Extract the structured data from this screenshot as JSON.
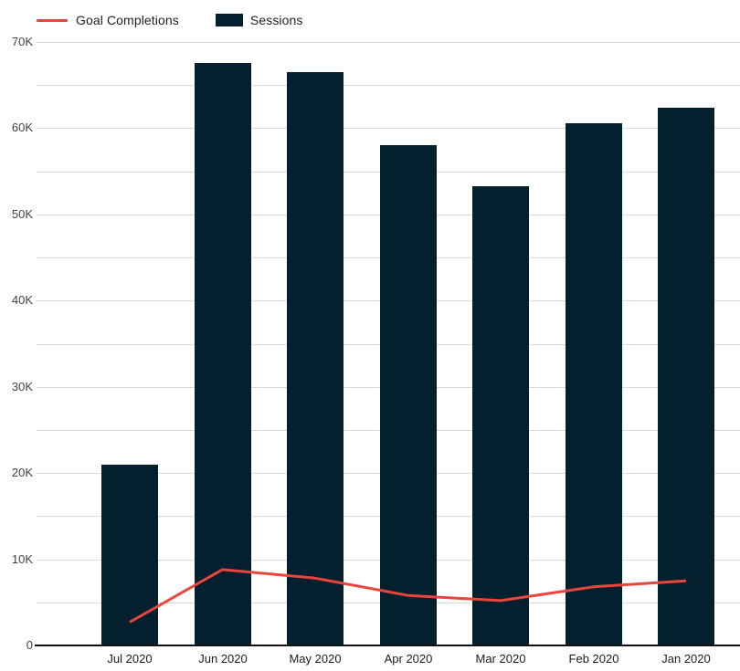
{
  "legend": {
    "items": [
      {
        "label": "Goal Completions",
        "swatch": "line-swatch",
        "color": "#e8453c"
      },
      {
        "label": "Sessions",
        "swatch": "rect-swatch",
        "color": "#04202f"
      }
    ]
  },
  "chart_data": {
    "type": "bar",
    "title": "",
    "xlabel": "",
    "ylabel": "",
    "categories": [
      "Jul 2020",
      "Jun 2020",
      "May 2020",
      "Apr 2020",
      "Mar 2020",
      "Feb 2020",
      "Jan 2020"
    ],
    "series": [
      {
        "name": "Sessions",
        "type": "bar",
        "color": "#04202f",
        "values": [
          21000,
          67600,
          66500,
          58000,
          53300,
          60600,
          62400
        ]
      },
      {
        "name": "Goal Completions",
        "type": "line",
        "color": "#e8453c",
        "values": [
          2700,
          8800,
          7800,
          5800,
          5200,
          6800,
          7500
        ]
      }
    ],
    "y_axis": {
      "min": 0,
      "max": 70000,
      "gridline_step": 5000,
      "ticks": [
        {
          "label": "70K",
          "value": 70000
        },
        {
          "label": "60K",
          "value": 60000
        },
        {
          "label": "50K",
          "value": 50000
        },
        {
          "label": "40K",
          "value": 40000
        },
        {
          "label": "30K",
          "value": 30000
        },
        {
          "label": "20K",
          "value": 20000
        },
        {
          "label": "10K",
          "value": 10000
        },
        {
          "label": "0",
          "value": 0
        }
      ]
    },
    "grid": true,
    "legend_position": "top-left",
    "colors": {
      "gridline": "#dadada",
      "axis_line": "#111111",
      "y_label_text": "#424242",
      "x_label_text": "#1c1c1c",
      "background": "#ffffff"
    }
  }
}
